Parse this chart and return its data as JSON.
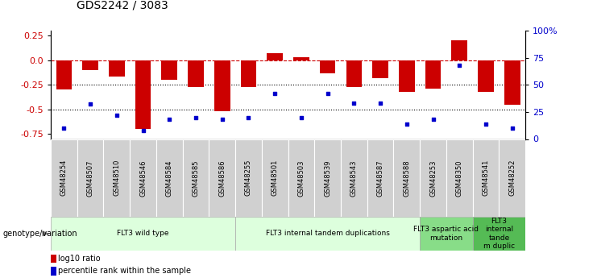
{
  "title": "GDS2242 / 3083",
  "samples": [
    "GSM48254",
    "GSM48507",
    "GSM48510",
    "GSM48546",
    "GSM48584",
    "GSM48585",
    "GSM48586",
    "GSM48255",
    "GSM48501",
    "GSM48503",
    "GSM48539",
    "GSM48543",
    "GSM48587",
    "GSM48588",
    "GSM48253",
    "GSM48350",
    "GSM48541",
    "GSM48252"
  ],
  "log10_ratio": [
    -0.3,
    -0.1,
    -0.17,
    -0.7,
    -0.2,
    -0.27,
    -0.52,
    -0.27,
    0.07,
    0.03,
    -0.13,
    -0.27,
    -0.18,
    -0.32,
    -0.29,
    0.2,
    -0.32,
    -0.45
  ],
  "percentile_rank": [
    10,
    32,
    22,
    8,
    18,
    20,
    18,
    20,
    42,
    20,
    42,
    33,
    33,
    14,
    18,
    68,
    14,
    10
  ],
  "bar_color": "#cc0000",
  "dot_color": "#0000cc",
  "dashed_line_color": "#cc0000",
  "dotted_line_color": "#000000",
  "groups": [
    {
      "label": "FLT3 wild type",
      "start": 0,
      "end": 7,
      "color": "#ddffdd"
    },
    {
      "label": "FLT3 internal tandem duplications",
      "start": 7,
      "end": 14,
      "color": "#ddffdd"
    },
    {
      "label": "FLT3 aspartic acid\nmutation",
      "start": 14,
      "end": 16,
      "color": "#88dd88"
    },
    {
      "label": "FLT3\ninternal\ntande\nm duplic",
      "start": 16,
      "end": 18,
      "color": "#55bb55"
    }
  ],
  "ylim_left": [
    -0.8,
    0.3
  ],
  "ylim_right": [
    0,
    100
  ],
  "ylabel_left_ticks": [
    0.25,
    0.0,
    -0.25,
    -0.5,
    -0.75
  ],
  "ylabel_right_ticks": [
    100,
    75,
    50,
    25,
    0
  ],
  "ylabel_right_labels": [
    "100%",
    "75",
    "50",
    "25",
    "0"
  ],
  "tick_label_bg": "#d0d0d0"
}
